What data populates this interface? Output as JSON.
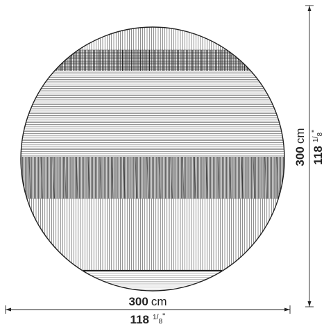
{
  "diagram": {
    "type": "round rug technical drawing"
  },
  "dimensions": {
    "width": {
      "value": "300",
      "unit": "cm",
      "imperial_whole": "118",
      "imperial_frac_num": "1",
      "imperial_frac_den": "8",
      "imperial_unit": "\""
    },
    "height": {
      "value": "300",
      "unit": "cm",
      "imperial_whole": "118",
      "imperial_frac_num": "1",
      "imperial_frac_den": "8",
      "imperial_unit": "\""
    }
  },
  "colors": {
    "line": "#222222",
    "background": "#ffffff"
  }
}
